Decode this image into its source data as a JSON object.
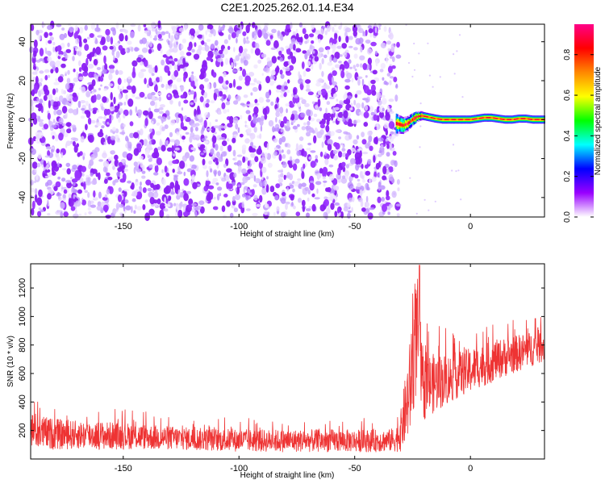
{
  "figure": {
    "title": "C2E1.2025.262.01.14.E34"
  },
  "chart_data": [
    {
      "type": "heatmap",
      "title": "C2E1.2025.262.01.14.E34",
      "xlabel": "Height of straight line (km)",
      "ylabel": "Frequency (Hz)",
      "xlim": [
        -190,
        32
      ],
      "ylim": [
        -50,
        49
      ],
      "xticks": [
        -150,
        -100,
        -50,
        0
      ],
      "yticks": [
        -40,
        -20,
        0,
        20,
        40
      ],
      "colorbar": {
        "label": "Normalized spectral amplitude",
        "range": [
          0,
          0.95
        ],
        "ticks": [
          0.0,
          0.2,
          0.4,
          0.6,
          0.8
        ],
        "colormap": [
          "#ffffff",
          "#9900ff",
          "#0000ff",
          "#00ffff",
          "#00ff00",
          "#ffff00",
          "#ff8800",
          "#ff0000",
          "#ff0088"
        ]
      },
      "regions": [
        {
          "name": "noise field",
          "x": [
            -190,
            -31
          ],
          "y": [
            -50,
            49
          ],
          "amplitude_range": [
            0.05,
            0.25
          ],
          "color": "#9900ff"
        },
        {
          "name": "signal band",
          "x": [
            -31,
            32
          ],
          "y_center": 0,
          "peak_amplitude": 0.9
        }
      ],
      "ridge": {
        "x": [
          -32,
          -29,
          -27,
          -25,
          -23,
          -21,
          -19,
          -17,
          -15,
          -12,
          -9,
          -6,
          -3,
          0,
          3,
          6,
          9,
          12,
          15,
          18,
          21,
          24,
          27,
          30,
          32
        ],
        "y": [
          -2,
          -3,
          -2,
          0,
          1.5,
          2,
          1.5,
          1,
          0.5,
          0,
          0,
          0,
          0,
          0,
          0.5,
          1,
          1,
          0.5,
          0,
          0,
          0.5,
          0.5,
          0,
          0,
          0
        ]
      }
    },
    {
      "type": "line",
      "xlabel": "Height of straight line (km)",
      "ylabel": "SNR (10 * v/v)",
      "xlim": [
        -190,
        32
      ],
      "ylim": [
        0,
        1370
      ],
      "xticks": [
        -150,
        -100,
        -50,
        0
      ],
      "yticks": [
        200,
        400,
        600,
        800,
        1000,
        1200
      ],
      "series": [
        {
          "name": "SNR",
          "color": "#ee3333",
          "x": [
            -190,
            -185,
            -180,
            -175,
            -170,
            -165,
            -160,
            -155,
            -150,
            -145,
            -140,
            -135,
            -130,
            -125,
            -120,
            -115,
            -110,
            -105,
            -100,
            -95,
            -90,
            -85,
            -80,
            -75,
            -70,
            -65,
            -60,
            -55,
            -50,
            -45,
            -40,
            -35,
            -32,
            -30,
            -28,
            -26,
            -25,
            -24,
            -23,
            -22,
            -21,
            -20,
            -18,
            -16,
            -14,
            -12,
            -10,
            -8,
            -6,
            -4,
            -2,
            0,
            2,
            4,
            6,
            8,
            10,
            12,
            14,
            16,
            18,
            20,
            22,
            24,
            26,
            28,
            30,
            32
          ],
          "mean": [
            210,
            185,
            175,
            170,
            170,
            168,
            165,
            163,
            162,
            160,
            155,
            150,
            148,
            145,
            140,
            138,
            135,
            133,
            130,
            130,
            128,
            128,
            127,
            128,
            128,
            128,
            128,
            128,
            128,
            128,
            128,
            130,
            140,
            200,
            350,
            500,
            700,
            800,
            900,
            700,
            520,
            500,
            520,
            530,
            540,
            550,
            560,
            570,
            585,
            600,
            610,
            620,
            640,
            650,
            660,
            670,
            690,
            700,
            710,
            720,
            730,
            740,
            750,
            760,
            770,
            780,
            790,
            800
          ],
          "spread": [
            130,
            120,
            110,
            105,
            100,
            100,
            100,
            98,
            95,
            92,
            90,
            88,
            85,
            82,
            80,
            80,
            80,
            80,
            80,
            80,
            80,
            80,
            80,
            80,
            80,
            80,
            80,
            80,
            80,
            80,
            80,
            80,
            90,
            150,
            250,
            350,
            400,
            420,
            420,
            350,
            250,
            230,
            220,
            210,
            200,
            190,
            180,
            170,
            165,
            160,
            160,
            160,
            155,
            150,
            150,
            150,
            145,
            140,
            140,
            135,
            135,
            130,
            130,
            125,
            125,
            120,
            120,
            115
          ],
          "peak": {
            "x": -22,
            "y": 1360
          }
        }
      ]
    }
  ]
}
